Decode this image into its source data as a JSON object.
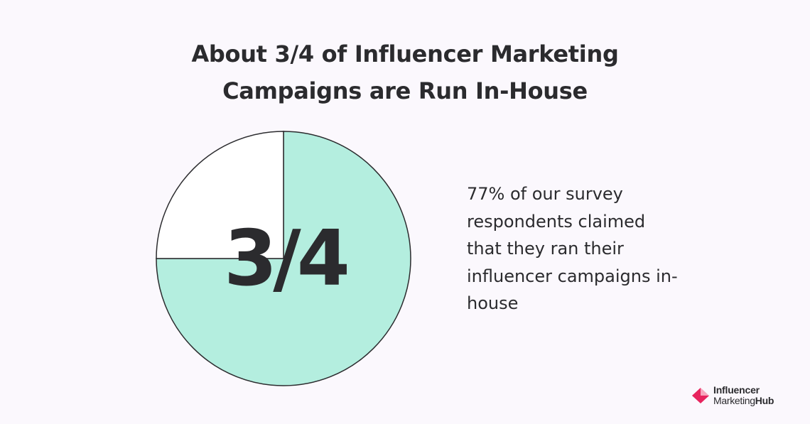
{
  "title": {
    "line1": "About 3/4 of Influencer Marketing",
    "line2": "Campaigns are Run In-House"
  },
  "chart_data": {
    "type": "pie",
    "slices": [
      {
        "value": 75,
        "color": "#b4eedf"
      },
      {
        "value": 25,
        "color": "#ffffff"
      }
    ],
    "center_label": "3/4",
    "stroke_color": "#2b2b2e"
  },
  "description": {
    "text": "77% of our survey respondents claimed that they ran their influencer campaigns in-house"
  },
  "logo": {
    "line1": "Influencer",
    "line2_a": "Marketing",
    "line2_b": "Hub",
    "icon": "influencer-marketing-hub-logo-icon",
    "colors": {
      "primary": "#e7245e",
      "secondary": "#f7a6bd"
    }
  }
}
